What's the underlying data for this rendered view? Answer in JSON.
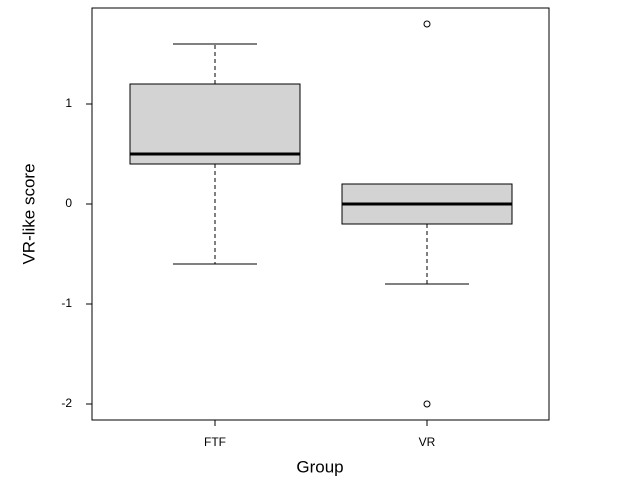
{
  "chart_data": {
    "type": "box",
    "x_label": "Group",
    "y_label": "VR-like score",
    "categories": [
      "FTF",
      "VR"
    ],
    "boxes": [
      {
        "whislo": -0.6,
        "q1": 0.4,
        "med": 0.5,
        "q3": 1.2,
        "whishi": 1.6,
        "fliers": []
      },
      {
        "whislo": -0.8,
        "q1": -0.2,
        "med": 0,
        "q3": 0.2,
        "whishi": 0.2,
        "fliers": [
          1.8,
          -2
        ]
      }
    ],
    "color": "#d3d3d3",
    "ylim": [
      -2.16,
      1.96
    ],
    "yticks": [
      -2,
      -1,
      0,
      1
    ]
  }
}
